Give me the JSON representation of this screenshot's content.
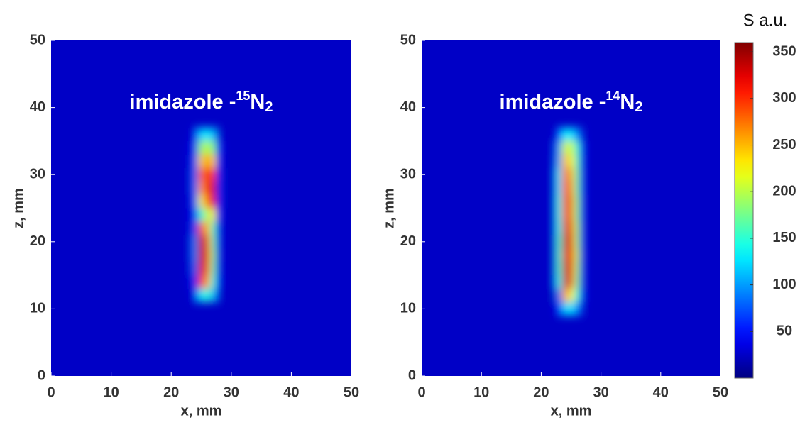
{
  "chart_data": [
    {
      "type": "heatmap",
      "title": {
        "text": "imidazole -",
        "sup": "15",
        "base": "N",
        "sub": "2"
      },
      "x_label": "x, mm",
      "y_label": "z, mm",
      "xlim": [
        0,
        50
      ],
      "ylim": [
        0,
        50
      ],
      "xticks": [
        0,
        10,
        20,
        30,
        40,
        50
      ],
      "yticks": [
        0,
        10,
        20,
        30,
        40,
        50
      ],
      "background": 25,
      "x": [
        23,
        24,
        25,
        26,
        27,
        28
      ],
      "y": [
        12,
        14,
        16,
        18,
        20,
        22,
        24,
        26,
        28,
        30,
        32,
        34,
        36
      ],
      "values": [
        [
          25,
          40,
          130,
          150,
          110,
          30
        ],
        [
          30,
          60,
          300,
          260,
          150,
          40
        ],
        [
          30,
          80,
          330,
          290,
          170,
          40
        ],
        [
          30,
          90,
          340,
          300,
          180,
          40
        ],
        [
          30,
          90,
          340,
          290,
          170,
          40
        ],
        [
          30,
          70,
          290,
          250,
          160,
          40
        ],
        [
          30,
          60,
          150,
          200,
          230,
          50
        ],
        [
          30,
          70,
          220,
          280,
          320,
          60
        ],
        [
          30,
          80,
          260,
          300,
          330,
          60
        ],
        [
          30,
          80,
          280,
          290,
          300,
          60
        ],
        [
          30,
          70,
          240,
          260,
          240,
          50
        ],
        [
          30,
          60,
          190,
          200,
          180,
          50
        ],
        [
          25,
          40,
          120,
          130,
          110,
          30
        ]
      ]
    },
    {
      "type": "heatmap",
      "title": {
        "text": "imidazole -",
        "sup": "14",
        "base": "N",
        "sub": "2"
      },
      "x_label": "x, mm",
      "y_label": "z, mm",
      "xlim": [
        0,
        50
      ],
      "ylim": [
        0,
        50
      ],
      "xticks": [
        0,
        10,
        20,
        30,
        40,
        50
      ],
      "yticks": [
        0,
        10,
        20,
        30,
        40,
        50
      ],
      "background": 25,
      "x": [
        22,
        23,
        24,
        25,
        26,
        27
      ],
      "y": [
        10,
        12,
        14,
        16,
        18,
        20,
        22,
        24,
        26,
        28,
        30,
        32,
        34,
        36
      ],
      "values": [
        [
          25,
          50,
          120,
          130,
          90,
          30
        ],
        [
          25,
          90,
          260,
          230,
          150,
          40
        ],
        [
          30,
          140,
          340,
          280,
          180,
          40
        ],
        [
          30,
          150,
          340,
          290,
          190,
          40
        ],
        [
          30,
          150,
          330,
          290,
          200,
          40
        ],
        [
          30,
          150,
          340,
          290,
          190,
          40
        ],
        [
          30,
          140,
          330,
          280,
          190,
          40
        ],
        [
          30,
          140,
          320,
          270,
          180,
          40
        ],
        [
          30,
          140,
          320,
          270,
          180,
          40
        ],
        [
          30,
          130,
          310,
          260,
          170,
          40
        ],
        [
          30,
          130,
          290,
          250,
          170,
          40
        ],
        [
          30,
          110,
          250,
          230,
          160,
          40
        ],
        [
          30,
          100,
          210,
          210,
          150,
          40
        ],
        [
          25,
          60,
          130,
          130,
          90,
          30
        ]
      ]
    }
  ],
  "colorbar": {
    "label": "S a.u.",
    "colormap": "jet",
    "clim": [
      0,
      360
    ],
    "ticks": [
      50,
      100,
      150,
      200,
      250,
      300,
      350
    ]
  }
}
